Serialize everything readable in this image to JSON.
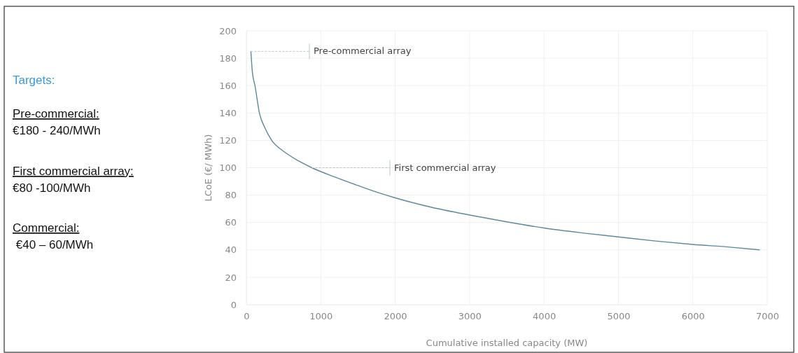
{
  "chart_data": {
    "type": "line",
    "xlabel": "Cumulative installed capacity (MW)",
    "ylabel": "LCoE (€/ MWh)",
    "xlim": [
      0,
      7000
    ],
    "xticks": [
      0,
      1000,
      2000,
      3000,
      4000,
      5000,
      6000,
      7000
    ],
    "ylim": [
      0,
      200
    ],
    "yticks": [
      0,
      20,
      40,
      60,
      80,
      100,
      120,
      140,
      160,
      180,
      200
    ],
    "grid": true,
    "marker": "none",
    "line_style": "solid",
    "series": [
      {
        "color": "#5b8a9c",
        "x": [
          60,
          80,
          115,
          175,
          250,
          340,
          500,
          700,
          880,
          1200,
          1500,
          1790,
          2000,
          2500,
          3000,
          3500,
          4000,
          4500,
          5000,
          5500,
          6000,
          6500,
          6900
        ],
        "values": [
          185,
          170,
          160,
          140,
          129,
          120,
          112,
          105,
          100,
          93,
          87,
          81.5,
          78,
          71,
          65.5,
          60.5,
          56,
          52.5,
          49.5,
          46.5,
          44,
          42,
          40
        ]
      }
    ],
    "annotations": [
      {
        "text": "Pre-commercial array",
        "x": 60,
        "y": 185
      },
      {
        "text": "First commercial array",
        "x": 880,
        "y": 100
      },
      "Targets:",
      "Pre-commercial:",
      "€180 - 240/MWh",
      "First commercial array:",
      "€80 -100/MWh",
      "Commercial:",
      " €40 – 60/MWh"
    ]
  }
}
